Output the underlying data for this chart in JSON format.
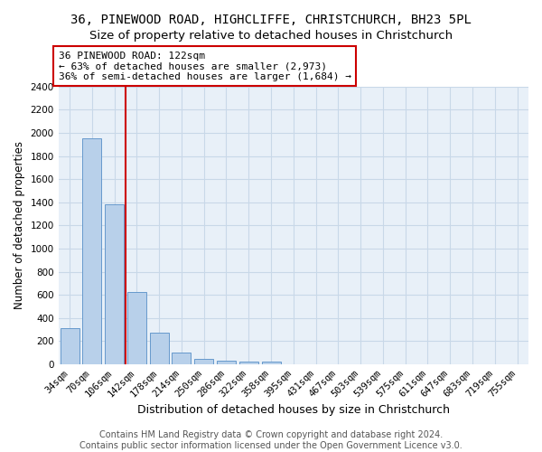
{
  "title1": "36, PINEWOOD ROAD, HIGHCLIFFE, CHRISTCHURCH, BH23 5PL",
  "title2": "Size of property relative to detached houses in Christchurch",
  "xlabel": "Distribution of detached houses by size in Christchurch",
  "ylabel": "Number of detached properties",
  "categories": [
    "34sqm",
    "70sqm",
    "106sqm",
    "142sqm",
    "178sqm",
    "214sqm",
    "250sqm",
    "286sqm",
    "322sqm",
    "358sqm",
    "395sqm",
    "431sqm",
    "467sqm",
    "503sqm",
    "539sqm",
    "575sqm",
    "611sqm",
    "647sqm",
    "683sqm",
    "719sqm",
    "755sqm"
  ],
  "values": [
    315,
    1950,
    1380,
    625,
    275,
    100,
    50,
    35,
    25,
    20,
    0,
    0,
    0,
    0,
    0,
    0,
    0,
    0,
    0,
    0,
    0
  ],
  "bar_color": "#b8d0ea",
  "bar_edge_color": "#6699cc",
  "grid_color": "#c8d8e8",
  "background_color": "#e8f0f8",
  "annotation_box_color": "#cc0000",
  "vline_color": "#cc0000",
  "vline_x_index": 2,
  "annotation_title": "36 PINEWOOD ROAD: 122sqm",
  "annotation_line1": "← 63% of detached houses are smaller (2,973)",
  "annotation_line2": "36% of semi-detached houses are larger (1,684) →",
  "ylim": [
    0,
    2400
  ],
  "yticks": [
    0,
    200,
    400,
    600,
    800,
    1000,
    1200,
    1400,
    1600,
    1800,
    2000,
    2200,
    2400
  ],
  "footer1": "Contains HM Land Registry data © Crown copyright and database right 2024.",
  "footer2": "Contains public sector information licensed under the Open Government Licence v3.0.",
  "title1_fontsize": 10,
  "title2_fontsize": 9.5,
  "xlabel_fontsize": 9,
  "ylabel_fontsize": 8.5,
  "tick_fontsize": 7.5,
  "annot_fontsize": 8,
  "footer_fontsize": 7
}
